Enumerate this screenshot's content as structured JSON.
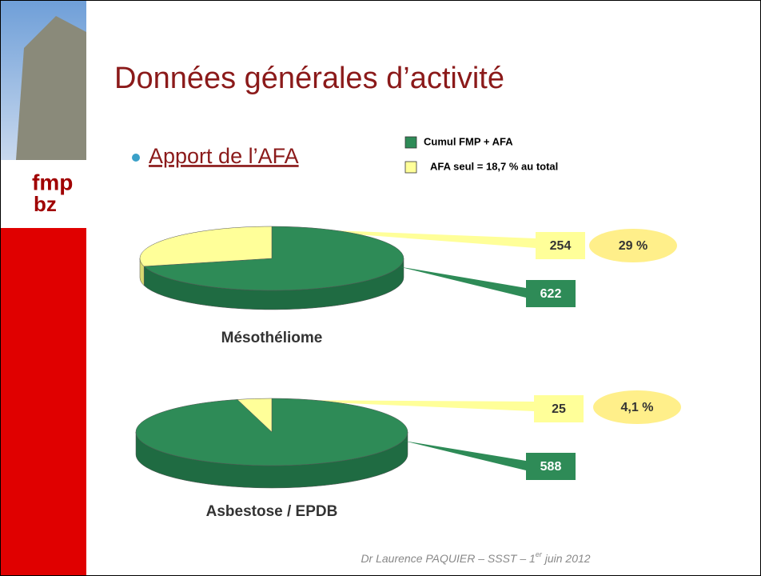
{
  "title": "Données générales d’activité",
  "bullet": "Apport de l’AFA",
  "logo": {
    "top": "fmp",
    "bottom": "bz"
  },
  "legend": [
    {
      "name": "Cumul FMP + AFA",
      "color": "#2e8b57"
    },
    {
      "name": "AFA seul = 18,7 % au total",
      "color": "#ffff99"
    }
  ],
  "footer": {
    "before": "Dr Laurence PAQUIER – SSST – 1",
    "sup": "er",
    "after": " juin 2012"
  },
  "chart_data": [
    {
      "type": "pie",
      "title": "Mésothéliome",
      "values": [
        622,
        254
      ],
      "annotation": "29 %"
    },
    {
      "type": "pie",
      "title": "Asbestose / EPDB",
      "values": [
        588,
        25
      ],
      "annotation": "4,1 %"
    }
  ]
}
